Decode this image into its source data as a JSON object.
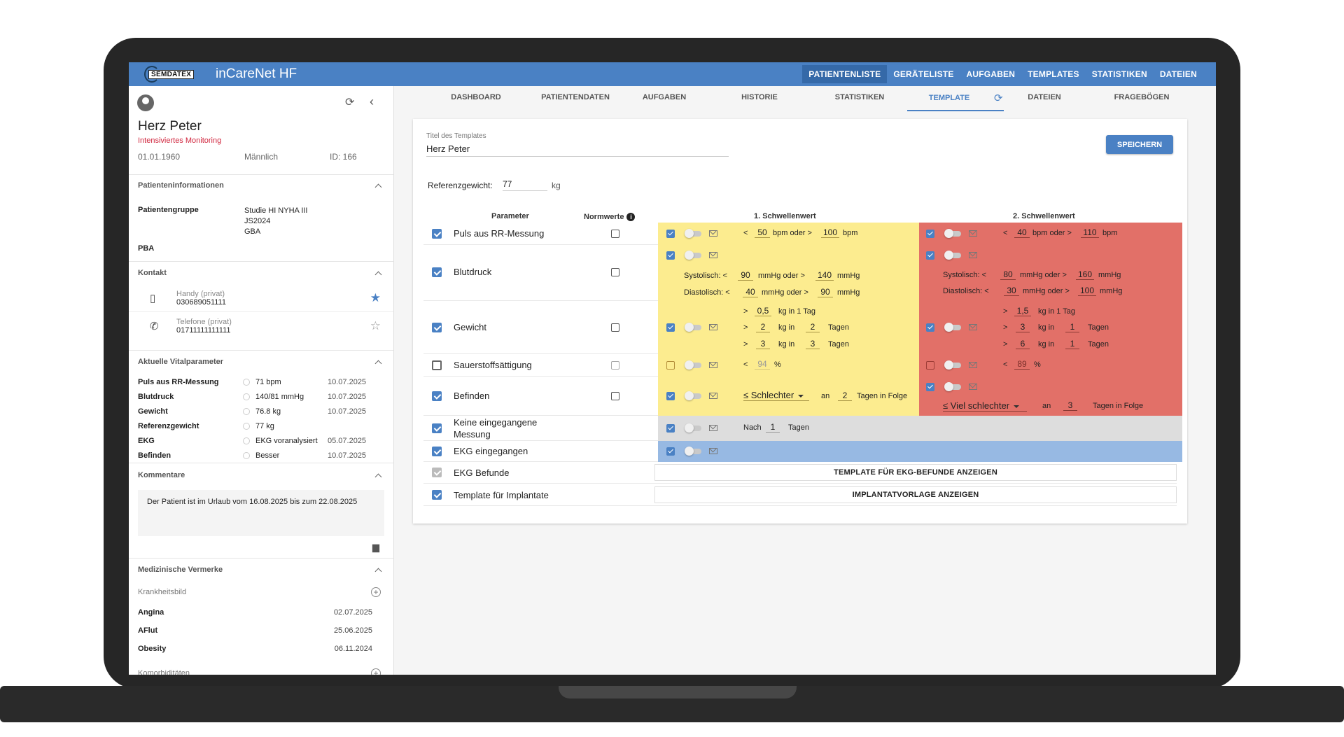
{
  "app": {
    "logo_text": "SEMDATEX",
    "title": "inCareNet HF"
  },
  "topnav": [
    "PATIENTENLISTE",
    "GERÄTELISTE",
    "AUFGABEN",
    "TEMPLATES",
    "STATISTIKEN",
    "DATEIEN"
  ],
  "patient": {
    "name": "Herz Peter",
    "status": "Intensiviertes Monitoring",
    "dob": "01.01.1960",
    "sex": "Männlich",
    "id": "ID: 166"
  },
  "sections": {
    "info": "Patienteninformationen",
    "kontakt": "Kontakt",
    "vital": "Aktuelle Vitalparameter",
    "kommentare": "Kommentare",
    "vermerke": "Medizinische Vermerke"
  },
  "info": {
    "group_label": "Patientengruppe",
    "group_lines": [
      "Studie HI NYHA III",
      "JS2024",
      "GBA"
    ],
    "pba": "PBA"
  },
  "contacts": [
    {
      "label": "Handy (privat)",
      "number": "030689051111"
    },
    {
      "label": "Telefone (privat)",
      "number": "01711111111111"
    }
  ],
  "vitals": [
    {
      "name": "Puls aus RR-Messung",
      "value": "71 bpm",
      "date": "10.07.2025"
    },
    {
      "name": "Blutdruck",
      "value": "140/81 mmHg",
      "date": "10.07.2025"
    },
    {
      "name": "Gewicht",
      "value": "76.8 kg",
      "date": "10.07.2025"
    },
    {
      "name": "Referenzgewicht",
      "value": "77 kg",
      "date": ""
    },
    {
      "name": "EKG",
      "value": "EKG voranalysiert",
      "date": "05.07.2025"
    },
    {
      "name": "Befinden",
      "value": "Besser",
      "date": "10.07.2025"
    }
  ],
  "comment": "Der Patient ist im Urlaub vom 16.08.2025 bis zum 22.08.2025",
  "vermerke": {
    "sub1": "Krankheitsbild",
    "items": [
      {
        "name": "Angina",
        "date": "02.07.2025"
      },
      {
        "name": "AFlut",
        "date": "25.06.2025"
      },
      {
        "name": "Obesity",
        "date": "06.11.2024"
      }
    ],
    "sub2": "Komorbiditäten"
  },
  "tabs": [
    "DASHBOARD",
    "PATIENTENDATEN",
    "AUFGABEN",
    "HISTORIE",
    "STATISTIKEN",
    "TEMPLATE",
    "DATEIEN",
    "FRAGEBÖGEN"
  ],
  "template": {
    "title_label": "Titel des Templates",
    "title_value": "Herz Peter",
    "save": "SPEICHERN",
    "ref_label": "Referenzgewicht:",
    "ref_value": "77",
    "ref_unit": "kg",
    "col_param": "Parameter",
    "col_norm": "Normwerte",
    "col_s1": "1. Schwellenwert",
    "col_s2": "2. Schwellenwert"
  },
  "params": {
    "puls": "Puls aus RR-Messung",
    "blut": "Blutdruck",
    "gewicht": "Gewicht",
    "sauer": "Sauerstoffsättigung",
    "befinden": "Befinden",
    "keine": "Keine eingegangene Messung",
    "ekg": "EKG eingegangen",
    "ekgbef": "EKG Befunde",
    "impl": "Template für Implantate"
  },
  "words": {
    "lt": "<",
    "gt": ">",
    "bpm_oder": "bpm oder >",
    "bpm": "bpm",
    "sys": "Systolisch: <",
    "dia": "Diastolisch: <",
    "mmhg_oder": "mmHg oder >",
    "mmhg": "mmHg",
    "kg_tag": "kg in 1 Tag",
    "kg_in": "kg in",
    "tagen": "Tagen",
    "pct": "%",
    "an": "an",
    "folge": "Tagen in Folge",
    "nach": "Nach"
  },
  "s1": {
    "puls": [
      "50",
      "100"
    ],
    "sys": [
      "90",
      "140"
    ],
    "dia": [
      "40",
      "90"
    ],
    "gew1": "0,5",
    "gew2": [
      "2",
      "2"
    ],
    "gew3": [
      "3",
      "3"
    ],
    "sauer": "94",
    "bef_sel": "≤ Schlechter",
    "bef_days": "2",
    "keine_days": "1"
  },
  "s2": {
    "puls": [
      "40",
      "110"
    ],
    "sys": [
      "80",
      "160"
    ],
    "dia": [
      "30",
      "100"
    ],
    "gew1": "1,5",
    "gew2": [
      "3",
      "1"
    ],
    "gew3": [
      "6",
      "1"
    ],
    "sauer": "89",
    "bef_sel": "≤ Viel schlechter",
    "bef_days": "3"
  },
  "buttons": {
    "ekg": "TEMPLATE FÜR EKG-BEFUNDE ANZEIGEN",
    "impl": "IMPLANTATVORLAGE ANZEIGEN"
  },
  "colors": {
    "primary": "#4a81c4",
    "yellow": "#fcec8f",
    "red": "#e27068",
    "grey": "#dddddd",
    "blue": "#97b9e3",
    "status": "#d0243c"
  }
}
